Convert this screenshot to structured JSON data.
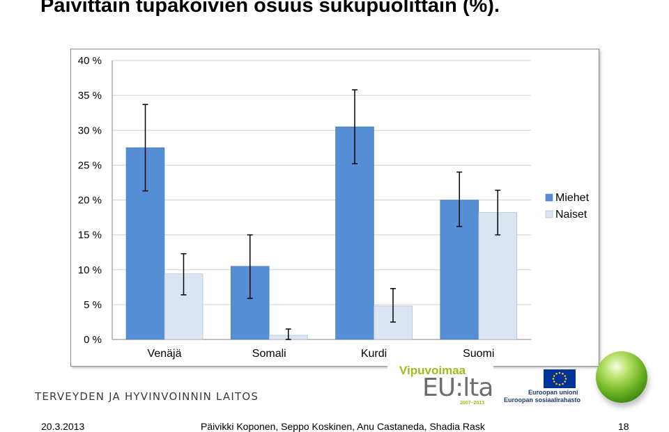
{
  "slide": {
    "title": "Päivittäin tupakoivien osuus sukupuolittain (%).",
    "date": "20.3.2013",
    "authors": "Päivikki Koponen, Seppo Koskinen, Anu Castaneda, Shadia Rask",
    "page": "18",
    "org_name": "TERVEYDEN JA HYVINVOINNIN LAITOS",
    "program_name": "Vipuvoimaa",
    "program_sub": "EU:lta",
    "program_years": "2007–2013",
    "eu_line1": "Euroopan unioni",
    "eu_line2": "Euroopan sosiaalirahasto"
  },
  "colors": {
    "miehet": "#558ed5",
    "naiset": "#dbe5f1",
    "grid": "#d0d0d0",
    "axis": "#868686"
  },
  "chart_data": {
    "type": "bar",
    "categories": [
      "Venäjä",
      "Somali",
      "Kurdi",
      "Suomi"
    ],
    "series": [
      {
        "name": "Miehet",
        "values": [
          27.5,
          10.5,
          30.5,
          20.0
        ],
        "error_low": [
          21.3,
          5.9,
          25.2,
          16.2
        ],
        "error_high": [
          33.7,
          15.0,
          35.8,
          24.0
        ]
      },
      {
        "name": "Naiset",
        "values": [
          9.4,
          0.6,
          4.8,
          18.2
        ],
        "error_low": [
          6.4,
          -0.1,
          2.5,
          15.0
        ],
        "error_high": [
          12.3,
          1.5,
          7.3,
          21.4
        ]
      }
    ],
    "ylim": [
      0,
      40
    ],
    "yticks": [
      "0 %",
      "5 %",
      "10 %",
      "15 %",
      "20 %",
      "25 %",
      "30 %",
      "35 %",
      "40 %"
    ],
    "grid": true,
    "legend": "right"
  }
}
